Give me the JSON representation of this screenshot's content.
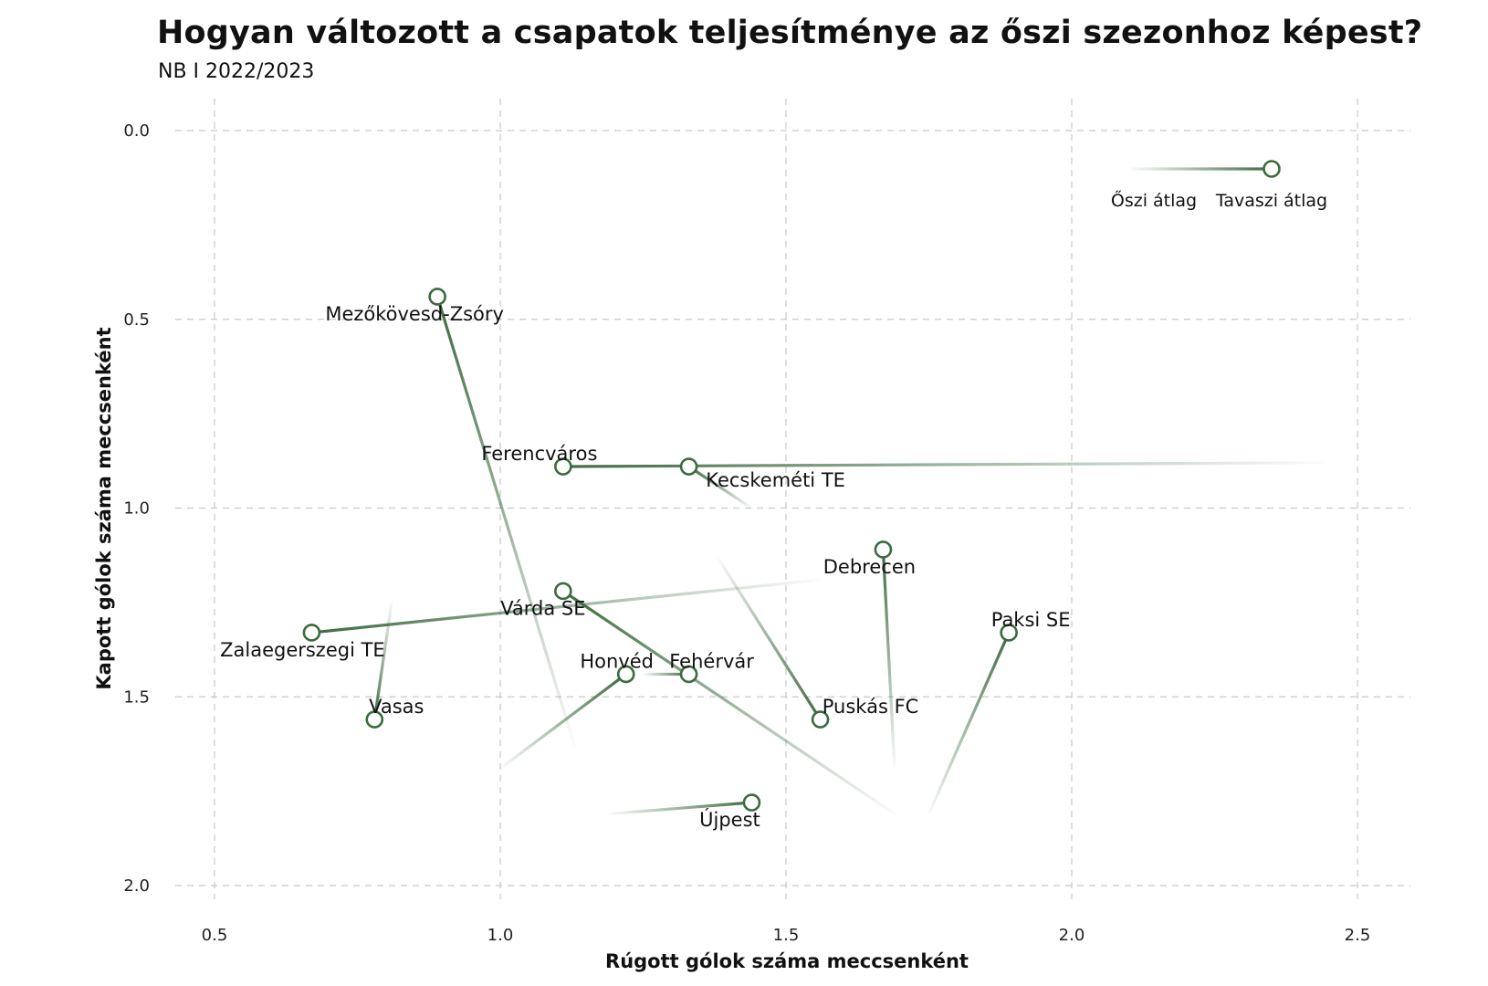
{
  "title": "Hogyan változott a csapatok teljesítménye az őszi szezonhoz képest?",
  "subtitle": "NB I 2022/2023",
  "colors": {
    "line": "#3b6b3f",
    "marker_stroke": "#3b6b3f",
    "marker_fill": "#ffffff",
    "grid": "#c8c8c8"
  },
  "chart_data": {
    "type": "scatter",
    "title": "Hogyan változott a csapatok teljesítménye az őszi szezonhoz képest?",
    "subtitle": "NB I 2022/2023",
    "xlabel": "Rúgott gólok száma meccsenként",
    "ylabel": "Kapott gólok száma meccsenként",
    "xlim": [
      0.35,
      2.6
    ],
    "ylim": [
      0.0,
      2.0
    ],
    "y_inverted": true,
    "x_ticks": [
      0.5,
      1.0,
      1.5,
      2.0,
      2.5
    ],
    "x_tick_labels": [
      "0.5",
      "1.0",
      "1.5",
      "2.0",
      "2.5"
    ],
    "y_ticks": [
      0.0,
      0.5,
      1.0,
      1.5,
      2.0
    ],
    "y_tick_labels": [
      "0.0",
      "0.5",
      "1.0",
      "1.5",
      "2.0"
    ],
    "grid": true,
    "legend": {
      "position": "top-right",
      "start_label": "Őszi átlag",
      "end_label": "Tavaszi átlag"
    },
    "teams": [
      {
        "name": "Mezőkövesd-Zsóry",
        "autumn": [
          1.13,
          1.63
        ],
        "spring": [
          0.89,
          0.44
        ]
      },
      {
        "name": "Ferencváros",
        "autumn": [
          2.44,
          0.88
        ],
        "spring": [
          1.11,
          0.89
        ]
      },
      {
        "name": "Kecskeméti TE",
        "autumn": [
          1.44,
          1.0
        ],
        "spring": [
          1.33,
          0.89
        ]
      },
      {
        "name": "Debrecen",
        "autumn": [
          1.69,
          1.69
        ],
        "spring": [
          1.67,
          1.11
        ]
      },
      {
        "name": "Várda SE",
        "autumn": [
          1.69,
          1.81
        ],
        "spring": [
          1.11,
          1.22
        ]
      },
      {
        "name": "Zalaegerszegi TE",
        "autumn": [
          1.56,
          1.19
        ],
        "spring": [
          0.67,
          1.33
        ]
      },
      {
        "name": "Paksi SE",
        "autumn": [
          1.75,
          1.81
        ],
        "spring": [
          1.89,
          1.33
        ]
      },
      {
        "name": "Honvéd",
        "autumn": [
          1.0,
          1.69
        ],
        "spring": [
          1.22,
          1.44
        ]
      },
      {
        "name": "Fehérvár",
        "autumn": [
          1.25,
          1.44
        ],
        "spring": [
          1.33,
          1.44
        ]
      },
      {
        "name": "Vasas",
        "autumn": [
          0.81,
          1.25
        ],
        "spring": [
          0.78,
          1.56
        ]
      },
      {
        "name": "Puskás FC",
        "autumn": [
          1.38,
          1.13
        ],
        "spring": [
          1.56,
          1.56
        ]
      },
      {
        "name": "Újpest",
        "autumn": [
          1.19,
          1.81
        ],
        "spring": [
          1.44,
          1.78
        ]
      }
    ]
  }
}
